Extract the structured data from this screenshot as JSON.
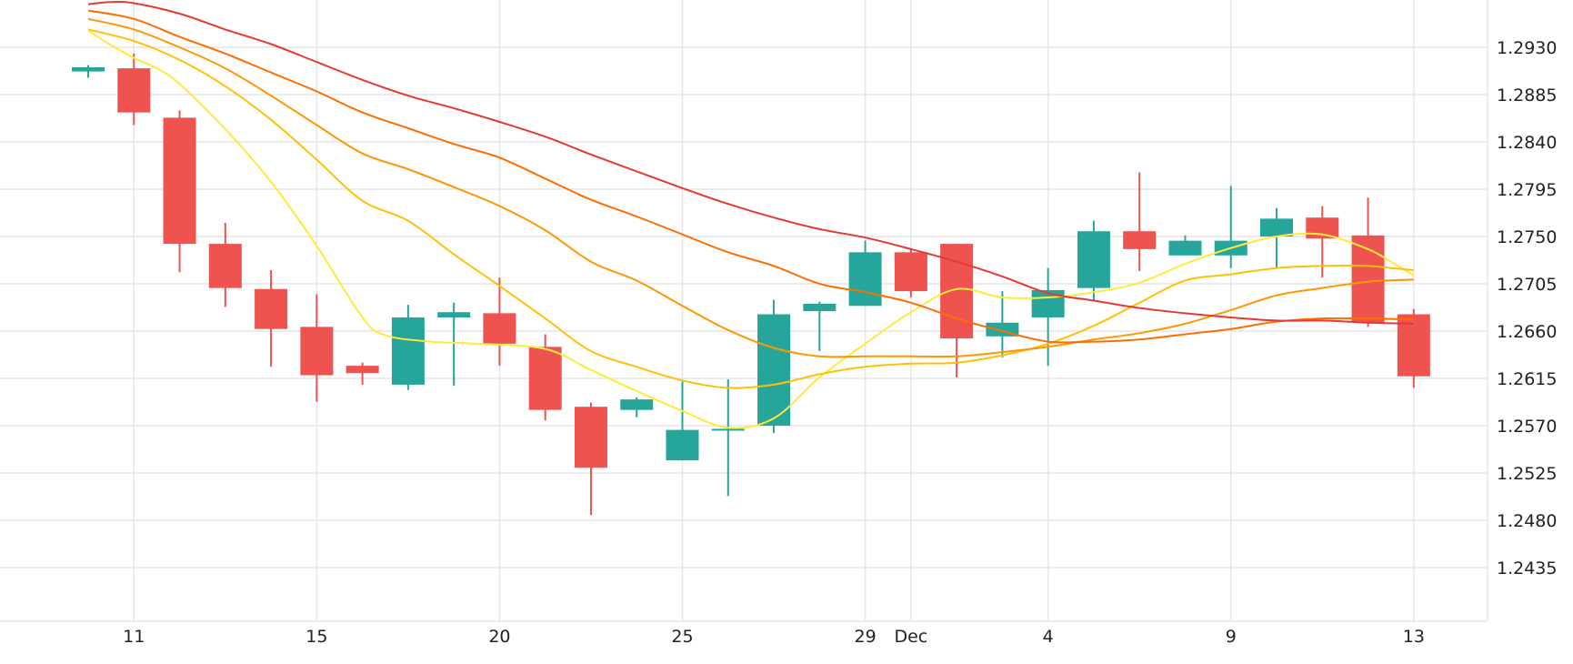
{
  "chart_data": {
    "type": "candlestick",
    "title": "",
    "xlabel": "",
    "ylabel": "",
    "ylim": [
      1.2395,
      1.2975
    ],
    "grid": true,
    "y_ticks": [
      "1.2435",
      "1.2480",
      "1.2525",
      "1.2570",
      "1.2615",
      "1.2660",
      "1.2705",
      "1.2750",
      "1.2795",
      "1.2840",
      "1.2885",
      "1.2930"
    ],
    "x_ticks": [
      {
        "label": "11",
        "i": 1
      },
      {
        "label": "15",
        "i": 5
      },
      {
        "label": "20",
        "i": 9
      },
      {
        "label": "25",
        "i": 13
      },
      {
        "label": "29",
        "i": 17
      },
      {
        "label": "Dec",
        "i": 18
      },
      {
        "label": "4",
        "i": 21
      },
      {
        "label": "9",
        "i": 25
      },
      {
        "label": "13",
        "i": 29
      }
    ],
    "colors": {
      "up": "#26a69a",
      "down": "#ef5350",
      "grid": "#e6e6e6"
    },
    "candles": [
      {
        "o": 1.2907,
        "h": 1.2913,
        "l": 1.2901,
        "c": 1.2911
      },
      {
        "o": 1.291,
        "h": 1.2924,
        "l": 1.2856,
        "c": 1.2868
      },
      {
        "o": 1.2863,
        "h": 1.287,
        "l": 1.2716,
        "c": 1.2743
      },
      {
        "o": 1.2743,
        "h": 1.2763,
        "l": 1.2683,
        "c": 1.2701
      },
      {
        "o": 1.27,
        "h": 1.2718,
        "l": 1.2626,
        "c": 1.2662
      },
      {
        "o": 1.2664,
        "h": 1.2695,
        "l": 1.2593,
        "c": 1.2618
      },
      {
        "o": 1.2627,
        "h": 1.263,
        "l": 1.2609,
        "c": 1.262
      },
      {
        "o": 1.2609,
        "h": 1.2685,
        "l": 1.2604,
        "c": 1.2673
      },
      {
        "o": 1.2673,
        "h": 1.2687,
        "l": 1.2608,
        "c": 1.2678
      },
      {
        "o": 1.2677,
        "h": 1.2711,
        "l": 1.2627,
        "c": 1.2648
      },
      {
        "o": 1.2645,
        "h": 1.2657,
        "l": 1.2575,
        "c": 1.2585
      },
      {
        "o": 1.2588,
        "h": 1.2592,
        "l": 1.2485,
        "c": 1.253
      },
      {
        "o": 1.2585,
        "h": 1.2597,
        "l": 1.2578,
        "c": 1.2595
      },
      {
        "o": 1.2537,
        "h": 1.2612,
        "l": 1.2537,
        "c": 1.2566
      },
      {
        "o": 1.2566,
        "h": 1.2614,
        "l": 1.2503,
        "c": 1.2567
      },
      {
        "o": 1.257,
        "h": 1.269,
        "l": 1.2563,
        "c": 1.2676
      },
      {
        "o": 1.2679,
        "h": 1.2688,
        "l": 1.2641,
        "c": 1.2686
      },
      {
        "o": 1.2684,
        "h": 1.2746,
        "l": 1.2684,
        "c": 1.2735
      },
      {
        "o": 1.2735,
        "h": 1.2738,
        "l": 1.2692,
        "c": 1.2698
      },
      {
        "o": 1.2743,
        "h": 1.2743,
        "l": 1.2616,
        "c": 1.2653
      },
      {
        "o": 1.2655,
        "h": 1.2698,
        "l": 1.2635,
        "c": 1.2668
      },
      {
        "o": 1.2673,
        "h": 1.272,
        "l": 1.2627,
        "c": 1.2699
      },
      {
        "o": 1.2701,
        "h": 1.2765,
        "l": 1.2689,
        "c": 1.2755
      },
      {
        "o": 1.2755,
        "h": 1.2811,
        "l": 1.2717,
        "c": 1.2738
      },
      {
        "o": 1.2732,
        "h": 1.2751,
        "l": 1.2732,
        "c": 1.2746
      },
      {
        "o": 1.2732,
        "h": 1.2798,
        "l": 1.272,
        "c": 1.2746
      },
      {
        "o": 1.275,
        "h": 1.2777,
        "l": 1.272,
        "c": 1.2767
      },
      {
        "o": 1.2768,
        "h": 1.2779,
        "l": 1.2711,
        "c": 1.2748
      },
      {
        "o": 1.2751,
        "h": 1.2787,
        "l": 1.2664,
        "c": 1.2668
      },
      {
        "o": 1.2676,
        "h": 1.2681,
        "l": 1.2606,
        "c": 1.2617
      }
    ],
    "moving_averages": [
      {
        "color": "#ffeb3b",
        "values": [
          [
            0,
            1.2946
          ],
          [
            0.5,
            1.2932
          ],
          [
            1,
            1.292
          ],
          [
            1.5,
            1.291
          ],
          [
            2,
            1.2895
          ],
          [
            3,
            1.2852
          ],
          [
            4,
            1.2802
          ],
          [
            5,
            1.2741
          ],
          [
            6,
            1.2673
          ],
          [
            6.5,
            1.2656
          ],
          [
            7.5,
            1.265
          ],
          [
            8.5,
            1.2648
          ],
          [
            10,
            1.2643
          ],
          [
            11,
            1.2623
          ],
          [
            12,
            1.2603
          ],
          [
            13,
            1.2584
          ],
          [
            14,
            1.2568
          ],
          [
            15,
            1.2577
          ],
          [
            16,
            1.2616
          ],
          [
            17,
            1.2648
          ],
          [
            18,
            1.2678
          ],
          [
            19,
            1.27
          ],
          [
            20,
            1.2692
          ],
          [
            21,
            1.2692
          ],
          [
            22,
            1.2697
          ],
          [
            23,
            1.2706
          ],
          [
            24,
            1.2724
          ],
          [
            25,
            1.2739
          ],
          [
            26,
            1.275
          ],
          [
            27,
            1.2752
          ],
          [
            28,
            1.2738
          ],
          [
            28.5,
            1.2726
          ],
          [
            29,
            1.2713
          ]
        ]
      },
      {
        "color": "#ffc107",
        "values": [
          [
            0,
            1.2947
          ],
          [
            1,
            1.2936
          ],
          [
            2,
            1.2918
          ],
          [
            3,
            1.2893
          ],
          [
            4,
            1.2861
          ],
          [
            5,
            1.2823
          ],
          [
            6,
            1.2784
          ],
          [
            7,
            1.2765
          ],
          [
            8,
            1.2733
          ],
          [
            9,
            1.2703
          ],
          [
            10,
            1.2672
          ],
          [
            11,
            1.2641
          ],
          [
            12,
            1.2626
          ],
          [
            13,
            1.2613
          ],
          [
            14,
            1.2606
          ],
          [
            15,
            1.2609
          ],
          [
            16,
            1.2619
          ],
          [
            17,
            1.2626
          ],
          [
            18,
            1.2629
          ],
          [
            19,
            1.263
          ],
          [
            20,
            1.2637
          ],
          [
            21,
            1.2648
          ],
          [
            22,
            1.2665
          ],
          [
            23,
            1.2687
          ],
          [
            24,
            1.2708
          ],
          [
            25,
            1.2714
          ],
          [
            26,
            1.272
          ],
          [
            27,
            1.2722
          ],
          [
            28,
            1.2722
          ],
          [
            28.5,
            1.272
          ],
          [
            29,
            1.2718
          ]
        ]
      },
      {
        "color": "#ff9800",
        "values": [
          [
            0,
            1.2957
          ],
          [
            1,
            1.2947
          ],
          [
            2,
            1.293
          ],
          [
            3,
            1.291
          ],
          [
            4,
            1.2884
          ],
          [
            5,
            1.2856
          ],
          [
            6,
            1.2829
          ],
          [
            7,
            1.2814
          ],
          [
            8,
            1.2797
          ],
          [
            9,
            1.2779
          ],
          [
            10,
            1.2756
          ],
          [
            11,
            1.2726
          ],
          [
            12,
            1.2708
          ],
          [
            13,
            1.2684
          ],
          [
            14,
            1.2661
          ],
          [
            15,
            1.2644
          ],
          [
            16,
            1.2636
          ],
          [
            17,
            1.2636
          ],
          [
            18,
            1.2636
          ],
          [
            19,
            1.2636
          ],
          [
            20,
            1.264
          ],
          [
            21,
            1.2645
          ],
          [
            22,
            1.2652
          ],
          [
            23,
            1.2658
          ],
          [
            24,
            1.2667
          ],
          [
            25,
            1.268
          ],
          [
            26,
            1.2694
          ],
          [
            27,
            1.2701
          ],
          [
            28,
            1.2707
          ],
          [
            29,
            1.2709
          ]
        ]
      },
      {
        "color": "#ff6d00",
        "values": [
          [
            0,
            1.2965
          ],
          [
            1,
            1.2957
          ],
          [
            2,
            1.294
          ],
          [
            3,
            1.2924
          ],
          [
            4,
            1.2906
          ],
          [
            5,
            1.2888
          ],
          [
            6,
            1.2868
          ],
          [
            7,
            1.2853
          ],
          [
            8,
            1.2838
          ],
          [
            9,
            1.2825
          ],
          [
            10,
            1.2805
          ],
          [
            11,
            1.2785
          ],
          [
            12,
            1.2769
          ],
          [
            13,
            1.2752
          ],
          [
            14,
            1.2735
          ],
          [
            15,
            1.2722
          ],
          [
            16,
            1.2705
          ],
          [
            17,
            1.2697
          ],
          [
            18,
            1.2687
          ],
          [
            19,
            1.2672
          ],
          [
            20,
            1.266
          ],
          [
            21,
            1.265
          ],
          [
            22,
            1.265
          ],
          [
            23,
            1.2652
          ],
          [
            24,
            1.2657
          ],
          [
            25,
            1.2662
          ],
          [
            26,
            1.2669
          ],
          [
            27,
            1.2672
          ],
          [
            28,
            1.2672
          ],
          [
            29,
            1.2671
          ]
        ]
      },
      {
        "color": "#e53935",
        "values": [
          [
            0,
            1.2971
          ],
          [
            0.5,
            1.2973
          ],
          [
            1,
            1.2972
          ],
          [
            2,
            1.2962
          ],
          [
            3,
            1.2947
          ],
          [
            4,
            1.2933
          ],
          [
            5,
            1.2916
          ],
          [
            6,
            1.2899
          ],
          [
            7,
            1.2884
          ],
          [
            8,
            1.2872
          ],
          [
            9,
            1.2859
          ],
          [
            10,
            1.2845
          ],
          [
            11,
            1.2828
          ],
          [
            12,
            1.2812
          ],
          [
            13,
            1.2796
          ],
          [
            14,
            1.2781
          ],
          [
            15,
            1.2768
          ],
          [
            16,
            1.2757
          ],
          [
            17,
            1.2749
          ],
          [
            18,
            1.2738
          ],
          [
            19,
            1.2726
          ],
          [
            20,
            1.2712
          ],
          [
            21,
            1.2696
          ],
          [
            22,
            1.2689
          ],
          [
            23,
            1.2682
          ],
          [
            24,
            1.2677
          ],
          [
            25,
            1.2673
          ],
          [
            26,
            1.267
          ],
          [
            27,
            1.267
          ],
          [
            28,
            1.2668
          ],
          [
            29,
            1.2667
          ]
        ]
      }
    ]
  }
}
